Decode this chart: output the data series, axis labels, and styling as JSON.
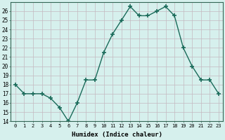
{
  "x": [
    0,
    1,
    2,
    3,
    4,
    5,
    6,
    7,
    8,
    9,
    10,
    11,
    12,
    13,
    14,
    15,
    16,
    17,
    18,
    19,
    20,
    21,
    22,
    23
  ],
  "y": [
    18,
    17,
    17,
    17,
    16.5,
    15.5,
    14,
    16,
    18.5,
    18.5,
    21.5,
    23.5,
    25,
    26.5,
    25.5,
    25.5,
    26,
    26.5,
    25.5,
    22,
    20,
    18.5,
    18.5,
    17
  ],
  "line_color": "#1a6b5a",
  "marker_color": "#1a6b5a",
  "bg_color": "#d6f0ed",
  "grid_color": "#c4b8c0",
  "xlabel": "Humidex (Indice chaleur)",
  "ylim": [
    14,
    27
  ],
  "xlim": [
    -0.5,
    23.5
  ],
  "yticks": [
    14,
    15,
    16,
    17,
    18,
    19,
    20,
    21,
    22,
    23,
    24,
    25,
    26
  ],
  "xticks": [
    0,
    1,
    2,
    3,
    4,
    5,
    6,
    7,
    8,
    9,
    10,
    11,
    12,
    13,
    14,
    15,
    16,
    17,
    18,
    19,
    20,
    21,
    22,
    23
  ]
}
